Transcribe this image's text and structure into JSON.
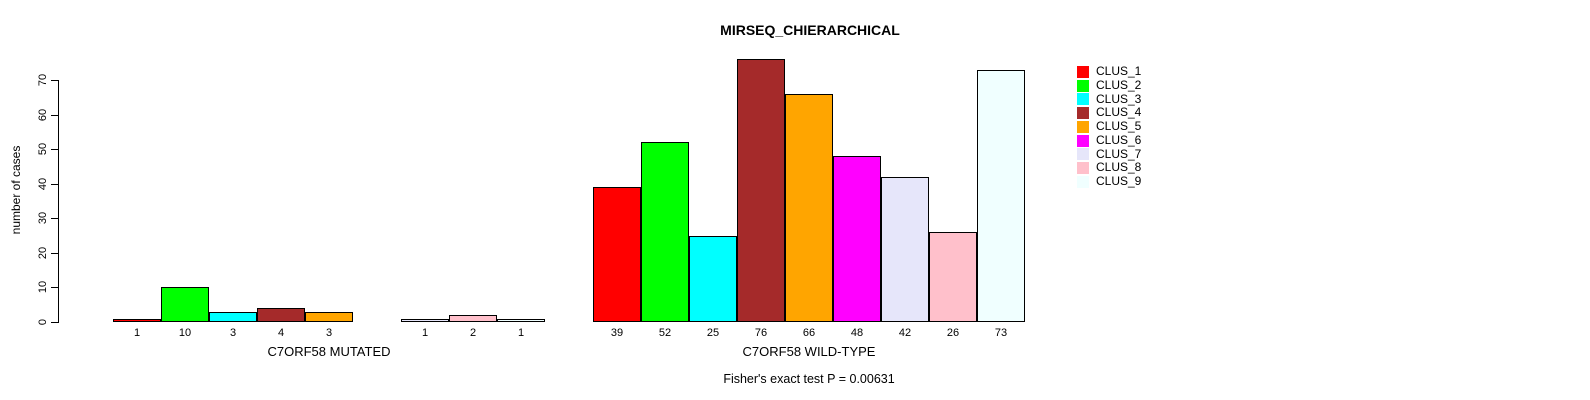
{
  "chart_data": {
    "type": "bar",
    "title": "MIRSEQ_CHIERARCHICAL",
    "ylabel": "number of cases",
    "xlabel": "",
    "annotation": "Fisher's exact test P = 0.00631",
    "ylim": [
      0,
      76
    ],
    "yticks": [
      0,
      10,
      20,
      30,
      40,
      50,
      60,
      70
    ],
    "grid": false,
    "bar_value_labels_shown": true,
    "legend_position": "right-outside",
    "legend": [
      {
        "label": "CLUS_1",
        "color": "#FF0000"
      },
      {
        "label": "CLUS_2",
        "color": "#00FF00"
      },
      {
        "label": "CLUS_3",
        "color": "#00FFFF"
      },
      {
        "label": "CLUS_4",
        "color": "#A52A2A"
      },
      {
        "label": "CLUS_5",
        "color": "#FFA500"
      },
      {
        "label": "CLUS_6",
        "color": "#FF00FF"
      },
      {
        "label": "CLUS_7",
        "color": "#E6E6FA"
      },
      {
        "label": "CLUS_8",
        "color": "#FFC0CB"
      },
      {
        "label": "CLUS_9",
        "color": "#F0FFFF"
      }
    ],
    "categories": [
      "CLUS_1",
      "CLUS_2",
      "CLUS_3",
      "CLUS_4",
      "CLUS_5",
      "CLUS_6",
      "CLUS_7",
      "CLUS_8",
      "CLUS_9"
    ],
    "groups": [
      {
        "label": "C7ORF58 MUTATED",
        "values": [
          1,
          10,
          3,
          4,
          3,
          0,
          1,
          2,
          1
        ]
      },
      {
        "label": "C7ORF58 WILD-TYPE",
        "values": [
          39,
          52,
          25,
          76,
          66,
          48,
          42,
          26,
          73
        ]
      }
    ]
  }
}
